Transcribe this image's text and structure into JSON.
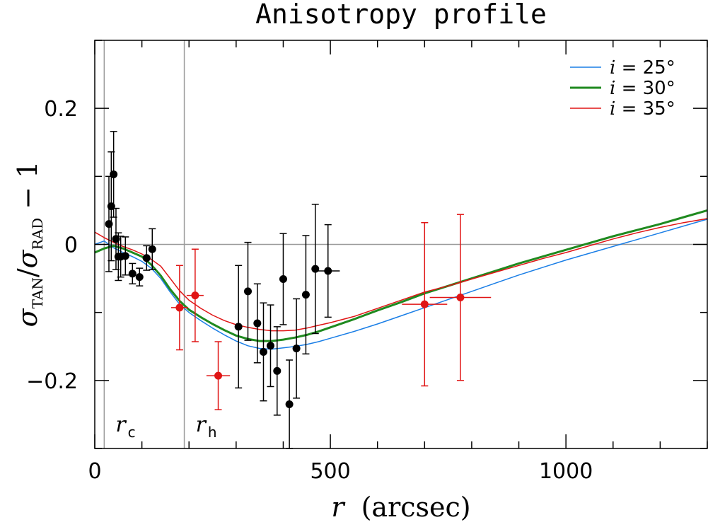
{
  "chart_data": {
    "type": "scatter",
    "title": "Anisotropy profile",
    "xlabel": "r (arcsec)",
    "xlabel_var": "r",
    "xlabel_unit": "(arcsec)",
    "ylabel": "σ_TAN/σ_RAD − 1",
    "ylabel_parts": {
      "sigma": "σ",
      "sub_tan": "TAN",
      "slash": "/",
      "sub_rad": "RAD",
      "minus_one": " − 1"
    },
    "xlim": [
      0,
      1300
    ],
    "ylim": [
      -0.3,
      0.3
    ],
    "xticks": [
      0,
      500,
      1000
    ],
    "xtick_labels": [
      "0",
      "500",
      "1000"
    ],
    "yticks": [
      -0.2,
      0,
      0.2
    ],
    "ytick_labels": [
      "−0.2",
      "0",
      "0.2"
    ],
    "x_minor_step": 100,
    "y_minor_step": 0.1,
    "zero_line": 0,
    "vertical_markers": [
      {
        "x": 20,
        "label": "r",
        "sub": "c"
      },
      {
        "x": 190,
        "label": "r",
        "sub": "h"
      }
    ],
    "legend_position": "top-right",
    "series": [
      {
        "name": "i = 25°",
        "legend_var": "i",
        "legend_val": " = 25°",
        "color": "#1a7ee6",
        "width": 1.5,
        "x": [
          0,
          20,
          40,
          60,
          80,
          100,
          120,
          140,
          160,
          180,
          200,
          225,
          250,
          275,
          300,
          325,
          350,
          375,
          400,
          425,
          450,
          475,
          500,
          550,
          600,
          650,
          700,
          750,
          800,
          850,
          900,
          950,
          1000,
          1050,
          1100,
          1150,
          1200,
          1250,
          1300
        ],
        "y": [
          0.0,
          0.005,
          -0.005,
          -0.012,
          -0.018,
          -0.025,
          -0.035,
          -0.05,
          -0.07,
          -0.088,
          -0.1,
          -0.112,
          -0.123,
          -0.133,
          -0.142,
          -0.149,
          -0.153,
          -0.154,
          -0.152,
          -0.15,
          -0.147,
          -0.143,
          -0.138,
          -0.128,
          -0.117,
          -0.105,
          -0.093,
          -0.081,
          -0.069,
          -0.057,
          -0.045,
          -0.034,
          -0.023,
          -0.013,
          -0.003,
          0.007,
          0.017,
          0.027,
          0.037
        ]
      },
      {
        "name": "i = 30°",
        "legend_var": "i",
        "legend_val": " = 30°",
        "color": "#1f8a1f",
        "width": 3,
        "x": [
          0,
          20,
          40,
          60,
          80,
          100,
          120,
          140,
          160,
          180,
          200,
          225,
          250,
          275,
          300,
          325,
          350,
          375,
          400,
          425,
          450,
          475,
          500,
          550,
          600,
          650,
          700,
          750,
          800,
          850,
          900,
          950,
          1000,
          1050,
          1100,
          1150,
          1200,
          1250,
          1300
        ],
        "y": [
          -0.012,
          -0.006,
          -0.002,
          -0.006,
          -0.012,
          -0.018,
          -0.03,
          -0.046,
          -0.066,
          -0.083,
          -0.096,
          -0.107,
          -0.117,
          -0.126,
          -0.134,
          -0.139,
          -0.142,
          -0.142,
          -0.14,
          -0.137,
          -0.133,
          -0.128,
          -0.122,
          -0.11,
          -0.097,
          -0.085,
          -0.072,
          -0.061,
          -0.05,
          -0.039,
          -0.028,
          -0.018,
          -0.008,
          0.002,
          0.012,
          0.021,
          0.03,
          0.04,
          0.05
        ]
      },
      {
        "name": "i = 35°",
        "legend_var": "i",
        "legend_val": " = 35°",
        "color": "#e01515",
        "width": 1.5,
        "x": [
          0,
          20,
          40,
          60,
          80,
          100,
          120,
          140,
          160,
          180,
          200,
          225,
          250,
          275,
          300,
          325,
          350,
          375,
          400,
          425,
          450,
          475,
          500,
          550,
          600,
          650,
          700,
          750,
          800,
          850,
          900,
          950,
          1000,
          1050,
          1100,
          1150,
          1200,
          1250,
          1300
        ],
        "y": [
          0.018,
          0.01,
          0.003,
          -0.003,
          -0.008,
          -0.014,
          -0.022,
          -0.032,
          -0.05,
          -0.068,
          -0.082,
          -0.094,
          -0.104,
          -0.112,
          -0.118,
          -0.122,
          -0.125,
          -0.127,
          -0.127,
          -0.126,
          -0.123,
          -0.119,
          -0.115,
          -0.106,
          -0.094,
          -0.082,
          -0.07,
          -0.061,
          -0.051,
          -0.041,
          -0.031,
          -0.021,
          -0.012,
          -0.002,
          0.008,
          0.017,
          0.025,
          0.032,
          0.038
        ]
      }
    ],
    "points_black": {
      "color": "#000000",
      "data": [
        {
          "x": 30,
          "y": 0.03,
          "err": 0.07,
          "xerr": 0
        },
        {
          "x": 35,
          "y": 0.056,
          "err": 0.08,
          "xerr": 0
        },
        {
          "x": 40,
          "y": 0.103,
          "err": 0.063,
          "xerr": 0
        },
        {
          "x": 45,
          "y": 0.008,
          "err": 0.045,
          "xerr": 0
        },
        {
          "x": 50,
          "y": -0.018,
          "err": 0.035,
          "xerr": 0
        },
        {
          "x": 55,
          "y": -0.018,
          "err": 0.03,
          "xerr": 0
        },
        {
          "x": 65,
          "y": -0.017,
          "err": 0.028,
          "xerr": 0
        },
        {
          "x": 80,
          "y": -0.043,
          "err": 0.015,
          "xerr": 0
        },
        {
          "x": 95,
          "y": -0.048,
          "err": 0.013,
          "xerr": 0
        },
        {
          "x": 110,
          "y": -0.02,
          "err": 0.018,
          "xerr": 0
        },
        {
          "x": 122,
          "y": -0.007,
          "err": 0.03,
          "xerr": 0
        },
        {
          "x": 305,
          "y": -0.121,
          "err": 0.09,
          "xerr": 0
        },
        {
          "x": 325,
          "y": -0.069,
          "err": 0.072,
          "xerr": 0
        },
        {
          "x": 345,
          "y": -0.116,
          "err": 0.058,
          "xerr": 0
        },
        {
          "x": 358,
          "y": -0.158,
          "err": 0.072,
          "xerr": 0
        },
        {
          "x": 373,
          "y": -0.149,
          "err": 0.06,
          "xerr": 0
        },
        {
          "x": 387,
          "y": -0.186,
          "err": 0.065,
          "xerr": 0
        },
        {
          "x": 400,
          "y": -0.051,
          "err": 0.067,
          "xerr": 0
        },
        {
          "x": 413,
          "y": -0.235,
          "err": 0.065,
          "xerr": 0
        },
        {
          "x": 428,
          "y": -0.153,
          "err": 0.073,
          "xerr": 0
        },
        {
          "x": 448,
          "y": -0.074,
          "err": 0.087,
          "xerr": 0
        },
        {
          "x": 468,
          "y": -0.036,
          "err": 0.095,
          "xerr": 0
        },
        {
          "x": 495,
          "y": -0.039,
          "err": 0.068,
          "xerr": 25
        }
      ]
    },
    "points_red": {
      "color": "#e01515",
      "data": [
        {
          "x": 180,
          "y": -0.093,
          "err": 0.062,
          "xerr": 18
        },
        {
          "x": 213,
          "y": -0.075,
          "err": 0.068,
          "xerr": 18
        },
        {
          "x": 262,
          "y": -0.193,
          "err": 0.05,
          "xerr": 25
        },
        {
          "x": 700,
          "y": -0.088,
          "err": 0.12,
          "xerr": 48
        },
        {
          "x": 776,
          "y": -0.078,
          "err": 0.122,
          "xerr": 65
        }
      ]
    }
  }
}
